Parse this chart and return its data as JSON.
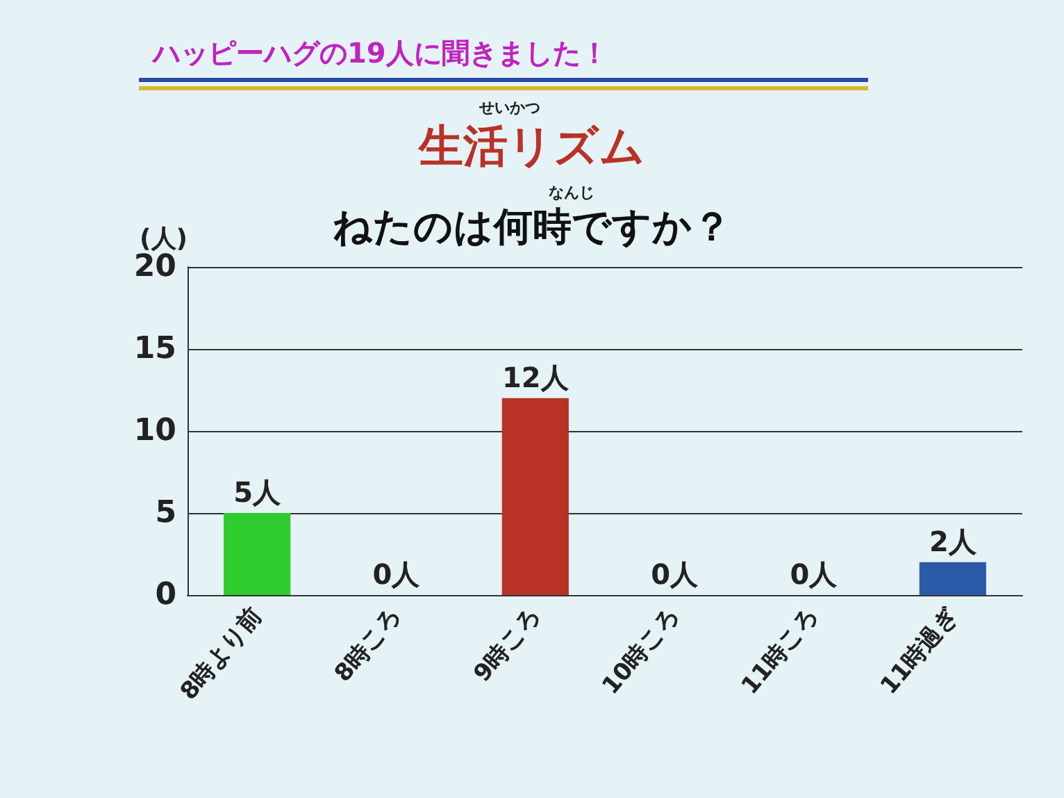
{
  "chart_data": {
    "type": "bar",
    "title": "生活リズム",
    "subtitle": "ねたのは何時ですか？",
    "ylabel": "(人)",
    "annotations": [
      "ハッピーハグの19人に聞きました！",
      "せいかつ",
      "なんじ"
    ],
    "categories": [
      "8時より前",
      "8時ころ",
      "9時ころ",
      "10時ころ",
      "11時ころ",
      "11時過ぎ"
    ],
    "values": [
      5,
      0,
      12,
      0,
      0,
      2
    ],
    "colors": [
      "#2ecc2e",
      "#b83228",
      "#b83228",
      "#b83228",
      "#2a5aa8",
      "#2a5aa8"
    ],
    "value_labels": [
      "5人",
      "0人",
      "12人",
      "0人",
      "0人",
      "2人"
    ],
    "ylim": [
      0,
      20
    ],
    "yticks": [
      0,
      5,
      10,
      15,
      20
    ],
    "grid": "y"
  }
}
